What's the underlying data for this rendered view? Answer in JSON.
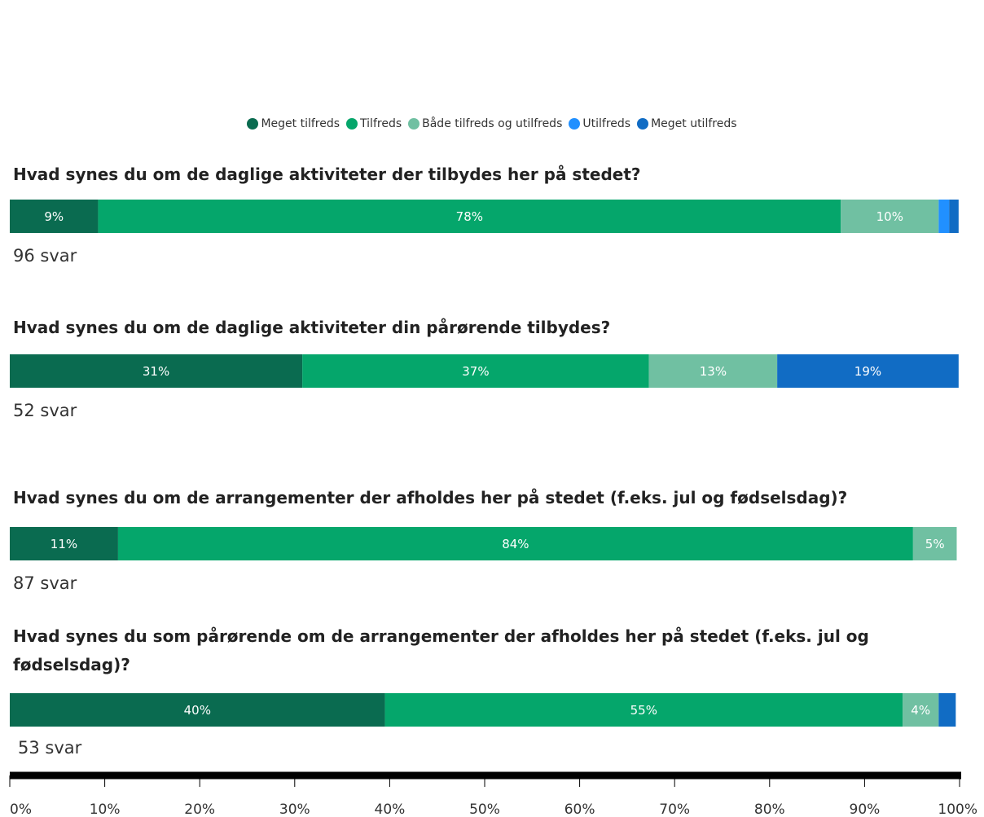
{
  "chart_data": {
    "type": "stacked_bar_horizontal",
    "categories": [
      "Hvad synes du om de daglige aktiviteter der tilbydes her på stedet?",
      "Hvad synes du om de daglige aktiviteter din pårørende tilbydes?",
      "Hvad synes du om de arrangementer der afholdes her på stedet (f.eks. jul og fødselsdag)?",
      "Hvad synes du som pårørende om de arrangementer der afholdes her på stedet (f.eks. jul og fødselsdag)?"
    ],
    "responses": [
      "96 svar",
      "52 svar",
      "87 svar",
      "53 svar"
    ],
    "series": [
      {
        "name": "Meget tilfreds",
        "color": "#0a6b50",
        "values": [
          9.3,
          30.8,
          11.4,
          39.5
        ],
        "value_labels": [
          "9%",
          "31%",
          "11%",
          "40%"
        ]
      },
      {
        "name": "Tilfreds",
        "color": "#05a66b",
        "values": [
          78.2,
          36.5,
          83.7,
          54.5
        ],
        "value_labels": [
          "78%",
          "37%",
          "84%",
          "55%"
        ]
      },
      {
        "name": "Både tilfreds og utilfreds",
        "color": "#70c0a2",
        "values": [
          10.3,
          13.5,
          4.6,
          3.8
        ],
        "value_labels": [
          "10%",
          "13%",
          "5%",
          "4%"
        ]
      },
      {
        "name": "Utilfreds",
        "color": "#2190ff",
        "values": [
          1.1,
          0,
          0,
          0
        ],
        "value_labels": [
          null,
          null,
          null,
          null
        ]
      },
      {
        "name": "Meget utilfreds",
        "color": "#116cc4",
        "values": [
          1.0,
          19.1,
          0,
          1.8
        ],
        "value_labels": [
          null,
          "19%",
          null,
          null
        ]
      }
    ],
    "xlim": [
      0,
      100
    ],
    "xticks": [
      {
        "value": 0,
        "label": "0%"
      },
      {
        "value": 10,
        "label": "10%"
      },
      {
        "value": 20,
        "label": "20%"
      },
      {
        "value": 30,
        "label": "30%"
      },
      {
        "value": 40,
        "label": "40%"
      },
      {
        "value": 50,
        "label": "50%"
      },
      {
        "value": 60,
        "label": "60%"
      },
      {
        "value": 70,
        "label": "70%"
      },
      {
        "value": 80,
        "label": "80%"
      },
      {
        "value": 90,
        "label": "90%"
      },
      {
        "value": 100,
        "label": "100%"
      }
    ],
    "legend": "top"
  }
}
